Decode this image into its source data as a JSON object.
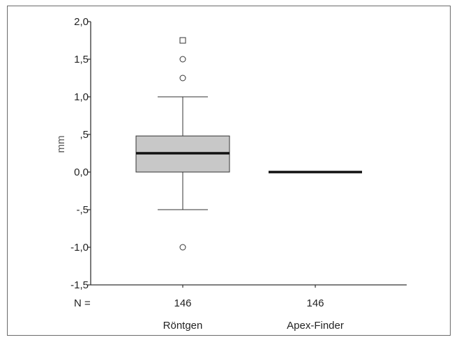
{
  "chart_data": {
    "type": "boxplot",
    "title": "",
    "ylabel": "mm",
    "xlabel": "",
    "ylim": [
      -1.5,
      2.0
    ],
    "yticks": [
      2.0,
      1.5,
      1.0,
      0.5,
      0.0,
      -0.5,
      -1.0,
      -1.5
    ],
    "ytick_labels": [
      "2,0",
      "1,5",
      "1,0",
      ",5",
      "0,0",
      "-,5",
      "-1,0",
      "-1,5"
    ],
    "n_label": "N =",
    "categories": [
      {
        "name": "Röntgen",
        "n": "146",
        "whisker_low": -0.5,
        "q1": 0.0,
        "median": 0.25,
        "q3": 0.48,
        "whisker_high": 1.0,
        "outliers": [
          1.25,
          1.5,
          -1.0
        ],
        "extremes": [
          1.75
        ]
      },
      {
        "name": "Apex-Finder",
        "n": "146",
        "whisker_low": 0.0,
        "q1": 0.0,
        "median": 0.0,
        "q3": 0.0,
        "whisker_high": 0.0,
        "outliers": [],
        "extremes": []
      }
    ],
    "colors": {
      "box": "#c8c8c8",
      "stroke": "#333333",
      "median": "#111111"
    },
    "grid": false
  }
}
